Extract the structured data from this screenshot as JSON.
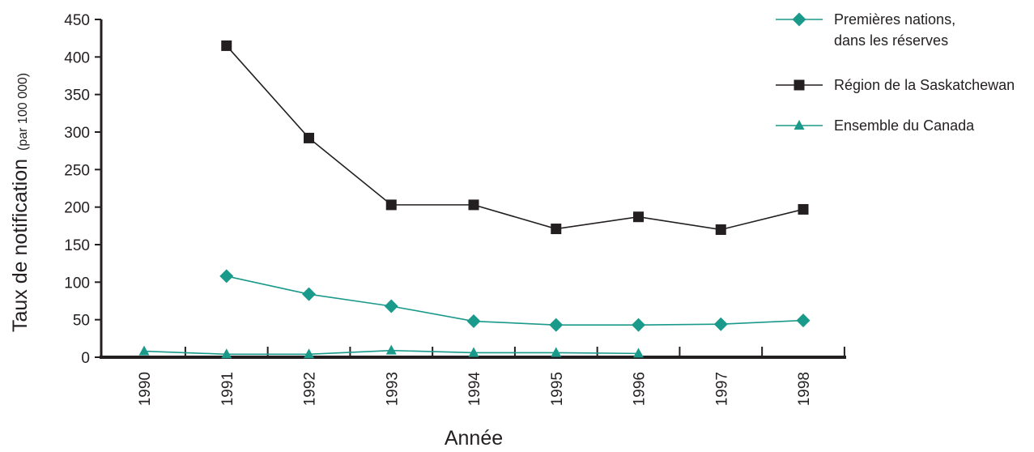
{
  "chart_data": {
    "type": "line",
    "title": "",
    "xlabel": "Année",
    "ylabel": "Taux de notification",
    "ylabel_unit": "(par 100 000)",
    "x": [
      "1990",
      "1991",
      "1992",
      "1993",
      "1994",
      "1995",
      "1996",
      "1997",
      "1998"
    ],
    "ylim": [
      0,
      450
    ],
    "yticks": [
      "0",
      "50",
      "100",
      "150",
      "200",
      "250",
      "300",
      "350",
      "400",
      "450"
    ],
    "grid": false,
    "legend_position": "top-right",
    "series": [
      {
        "name_lines": [
          "Premières nations,",
          "dans les réserves"
        ],
        "marker": "diamond",
        "color": "#1a9a8a",
        "values": [
          null,
          108,
          84,
          68,
          48,
          43,
          43,
          44,
          49
        ]
      },
      {
        "name_lines": [
          "Région de la Saskatchewan"
        ],
        "marker": "square",
        "color": "#231f20",
        "values": [
          null,
          415,
          292,
          203,
          203,
          171,
          187,
          170,
          197
        ]
      },
      {
        "name_lines": [
          "Ensemble du Canada"
        ],
        "marker": "triangle",
        "color": "#1a9a8a",
        "values": [
          8,
          4,
          4,
          9,
          6,
          6,
          5,
          null,
          null
        ]
      }
    ]
  }
}
